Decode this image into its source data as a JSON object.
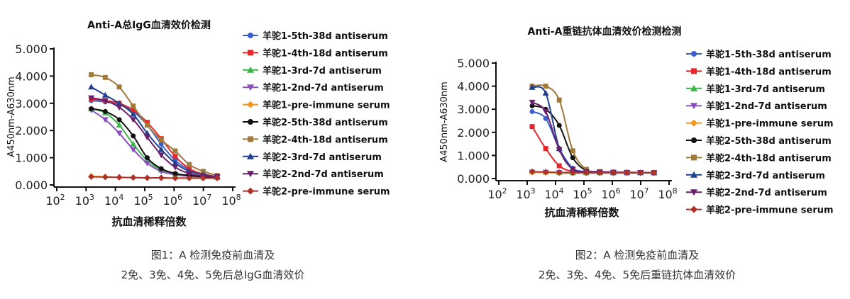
{
  "chart_data": [
    {
      "type": "line",
      "title": "Anti-A总IgG血清效价检测",
      "xlabel": "抗血清稀释倍数",
      "ylabel": "A450nm-A630nm",
      "xscale": "log",
      "xlim": [
        100,
        100000000
      ],
      "ylim": [
        0,
        5
      ],
      "xticks": [
        "10^2",
        "10^3",
        "10^4",
        "10^5",
        "10^6",
        "10^7",
        "10^8"
      ],
      "yticks": [
        "0.000",
        "1.000",
        "2.000",
        "3.000",
        "4.000",
        "5.000"
      ],
      "legend_position": "right",
      "x": [
        1500,
        4500,
        13500,
        40500,
        121500,
        364500,
        1093500,
        3280500,
        9841500,
        29524500
      ],
      "series": [
        {
          "name": "羊驼1-5th-38d antiserum",
          "color": "#3a5fcd",
          "marker": "circle",
          "values": [
            3.1,
            3.05,
            2.95,
            2.7,
            2.2,
            1.5,
            0.9,
            0.55,
            0.38,
            0.3
          ]
        },
        {
          "name": "羊驼1-4th-18d antiserum",
          "color": "#e8262a",
          "marker": "square",
          "values": [
            3.15,
            3.1,
            3.0,
            2.75,
            2.3,
            1.7,
            1.05,
            0.6,
            0.4,
            0.3
          ]
        },
        {
          "name": "羊驼1-3rd-7d antiserum",
          "color": "#3ab54a",
          "marker": "triangle-up",
          "values": [
            2.8,
            2.65,
            2.2,
            1.5,
            0.9,
            0.55,
            0.4,
            0.32,
            0.3,
            0.28
          ]
        },
        {
          "name": "羊驼1-2nd-7d antiserum",
          "color": "#8a4fc0",
          "marker": "triangle-down",
          "values": [
            2.75,
            2.4,
            1.9,
            1.3,
            0.8,
            0.5,
            0.38,
            0.32,
            0.3,
            0.28
          ]
        },
        {
          "name": "羊驼1-pre-immune serum",
          "color": "#f7941d",
          "marker": "diamond",
          "values": [
            0.32,
            0.3,
            0.28,
            0.27,
            0.26,
            0.26,
            0.25,
            0.25,
            0.25,
            0.25
          ]
        },
        {
          "name": "羊驼2-5th-38d antiserum",
          "color": "#111111",
          "marker": "circle",
          "values": [
            2.8,
            2.7,
            2.4,
            1.8,
            1.0,
            0.6,
            0.42,
            0.35,
            0.3,
            0.28
          ]
        },
        {
          "name": "羊驼2-4th-18d antiserum",
          "color": "#a07a3a",
          "marker": "square",
          "values": [
            4.05,
            3.95,
            3.6,
            2.9,
            2.2,
            1.65,
            1.25,
            0.75,
            0.5,
            0.35
          ]
        },
        {
          "name": "羊驼2-3rd-7d antiserum",
          "color": "#1f3f8f",
          "marker": "triangle-up",
          "values": [
            3.6,
            3.3,
            3.0,
            2.6,
            1.9,
            1.3,
            0.8,
            0.5,
            0.38,
            0.3
          ]
        },
        {
          "name": "羊驼2-2nd-7d antiserum",
          "color": "#6a1f6a",
          "marker": "triangle-down",
          "values": [
            3.2,
            3.1,
            2.85,
            2.4,
            1.75,
            1.1,
            0.65,
            0.42,
            0.33,
            0.3
          ]
        },
        {
          "name": "羊驼2-pre-immune serum",
          "color": "#b0302a",
          "marker": "diamond",
          "values": [
            0.3,
            0.29,
            0.28,
            0.27,
            0.26,
            0.26,
            0.25,
            0.25,
            0.25,
            0.25
          ]
        }
      ]
    },
    {
      "type": "line",
      "title": "Anti-A重链抗体血清效价检测检测",
      "xlabel": "抗血清稀释倍数",
      "ylabel": "A450nm-A630nm",
      "xscale": "log",
      "xlim": [
        100,
        100000000
      ],
      "ylim": [
        0,
        5
      ],
      "xticks": [
        "10^2",
        "10^3",
        "10^4",
        "10^5",
        "10^6",
        "10^7",
        "10^8"
      ],
      "yticks": [
        "0.000",
        "1.000",
        "2.000",
        "3.000",
        "4.000",
        "5.000"
      ],
      "legend_position": "right",
      "x": [
        1500,
        4500,
        13500,
        40500,
        121500,
        364500,
        1093500,
        3280500,
        9841500,
        29524500
      ],
      "series": [
        {
          "name": "羊驼1-5th-38d antiserum",
          "color": "#3a5fcd",
          "marker": "circle",
          "values": [
            2.9,
            2.6,
            1.3,
            0.45,
            0.3,
            0.28,
            0.27,
            0.26,
            0.26,
            0.25
          ]
        },
        {
          "name": "羊驼1-4th-18d antiserum",
          "color": "#e8262a",
          "marker": "square",
          "values": [
            2.25,
            1.3,
            0.55,
            0.3,
            0.27,
            0.26,
            0.25,
            0.25,
            0.25,
            0.25
          ]
        },
        {
          "name": "羊驼1-3rd-7d antiserum",
          "color": "#3ab54a",
          "marker": "triangle-up",
          "values": [
            0.3,
            0.28,
            0.26,
            0.25,
            0.25,
            0.25,
            0.25,
            0.25,
            0.25,
            0.25
          ]
        },
        {
          "name": "羊驼1-2nd-7d antiserum",
          "color": "#8a4fc0",
          "marker": "triangle-down",
          "values": [
            0.28,
            0.27,
            0.26,
            0.25,
            0.25,
            0.25,
            0.25,
            0.25,
            0.25,
            0.25
          ]
        },
        {
          "name": "羊驼1-pre-immune serum",
          "color": "#f7941d",
          "marker": "diamond",
          "values": [
            0.27,
            0.26,
            0.25,
            0.25,
            0.25,
            0.25,
            0.25,
            0.25,
            0.25,
            0.25
          ]
        },
        {
          "name": "羊驼2-5th-38d antiserum",
          "color": "#111111",
          "marker": "circle",
          "values": [
            3.15,
            3.0,
            2.3,
            0.9,
            0.35,
            0.3,
            0.28,
            0.27,
            0.26,
            0.26
          ]
        },
        {
          "name": "羊驼2-4th-18d antiserum",
          "color": "#a07a3a",
          "marker": "square",
          "values": [
            4.0,
            4.0,
            3.4,
            1.2,
            0.4,
            0.3,
            0.28,
            0.27,
            0.26,
            0.26
          ]
        },
        {
          "name": "羊驼2-3rd-7d antiserum",
          "color": "#1f3f8f",
          "marker": "triangle-up",
          "values": [
            3.95,
            3.7,
            1.3,
            0.4,
            0.3,
            0.28,
            0.27,
            0.26,
            0.26,
            0.25
          ]
        },
        {
          "name": "羊驼2-2nd-7d antiserum",
          "color": "#6a1f6a",
          "marker": "triangle-down",
          "values": [
            3.3,
            2.9,
            1.25,
            0.4,
            0.3,
            0.28,
            0.27,
            0.26,
            0.26,
            0.25
          ]
        },
        {
          "name": "羊驼2-pre-immune serum",
          "color": "#b0302a",
          "marker": "diamond",
          "values": [
            0.3,
            0.28,
            0.26,
            0.25,
            0.25,
            0.25,
            0.25,
            0.25,
            0.25,
            0.25
          ]
        }
      ]
    }
  ],
  "captions": {
    "figure1": {
      "line1": "图1：A 检测免疫前血清及",
      "line2": "2免、3免、4免、5免后总IgG血清效价"
    },
    "figure2": {
      "line1": "图2：A 检测免疫前血清及",
      "line2": "2免、3免、4免、5免后重链抗体血清效价"
    }
  }
}
